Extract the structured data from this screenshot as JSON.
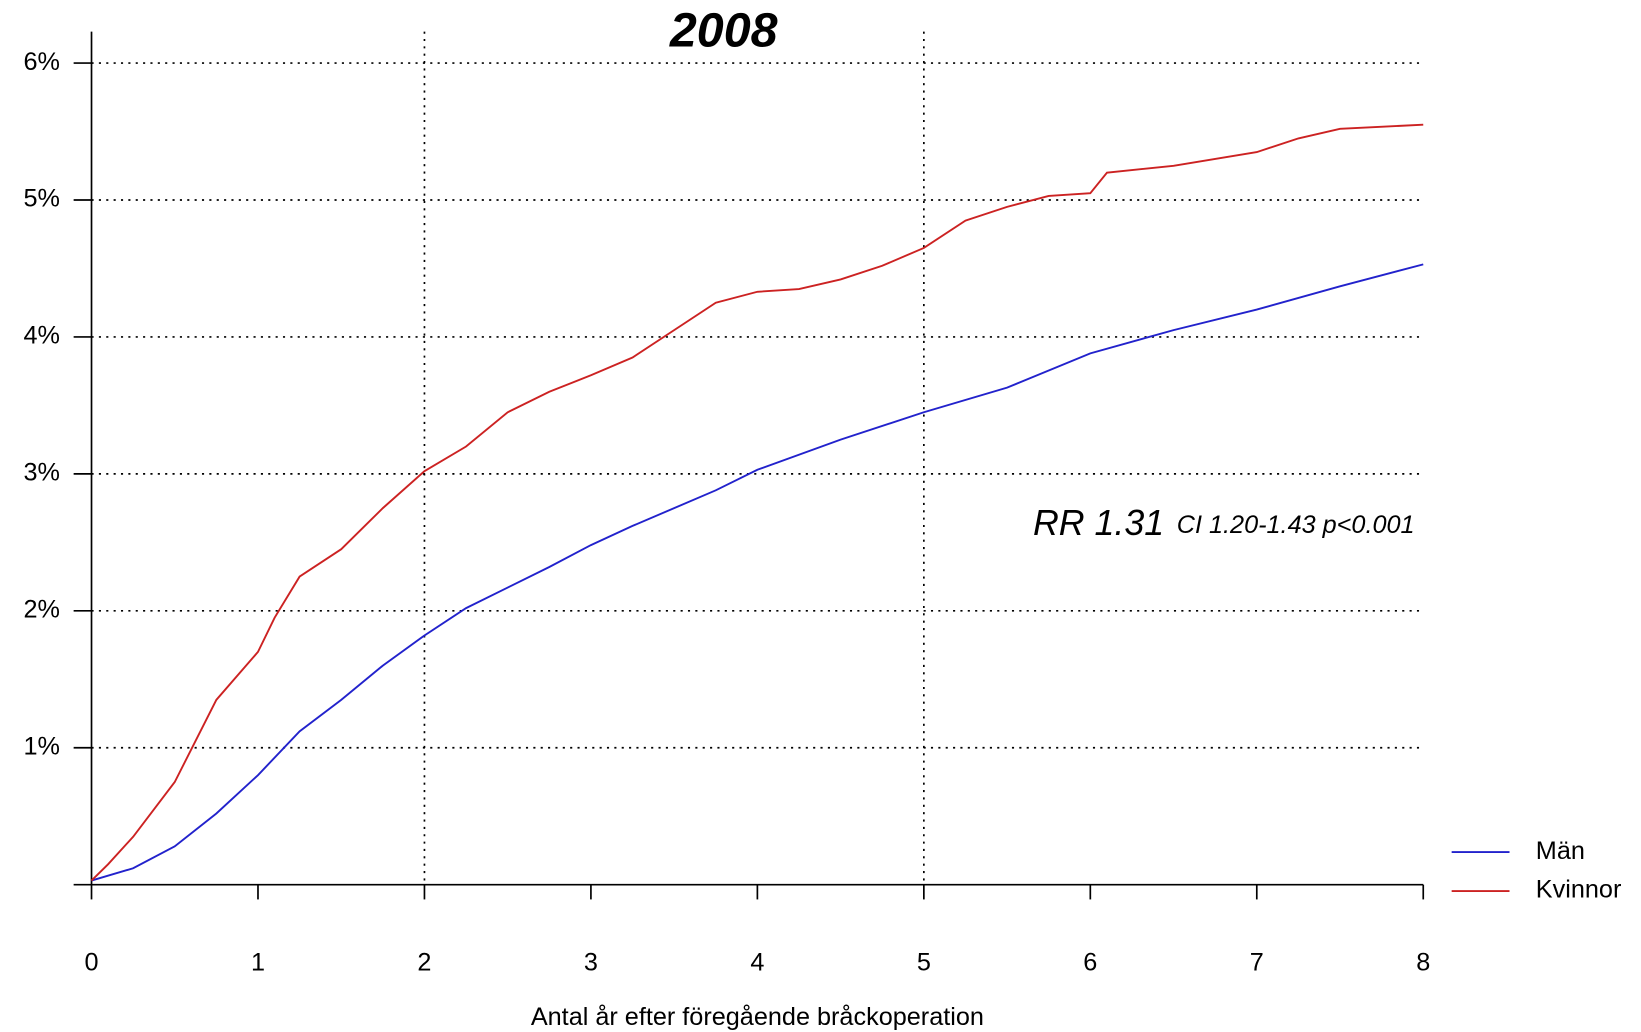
{
  "chart_data": {
    "type": "line",
    "title": "2008",
    "x_label": "Antal år efter föregående bråckoperation",
    "annotation": {
      "main": "RR 1.31",
      "detail": "CI 1.20-1.43 p<0.001"
    },
    "xlim": [
      0,
      8
    ],
    "xticks": [
      0,
      1,
      2,
      3,
      4,
      5,
      6,
      7,
      8
    ],
    "ylim": [
      0,
      6.23
    ],
    "yticks": [
      {
        "value": 1,
        "label": "1%"
      },
      {
        "value": 2,
        "label": "2%"
      },
      {
        "value": 3,
        "label": "3%"
      },
      {
        "value": 4,
        "label": "4%"
      },
      {
        "value": 5,
        "label": "5%"
      },
      {
        "value": 6,
        "label": "6%"
      }
    ],
    "xgrid": [
      2,
      5
    ],
    "grid": true,
    "legend": "bottom-right",
    "series": [
      {
        "name": "Män",
        "color": "#2222cc",
        "x": [
          0,
          0.25,
          0.5,
          0.75,
          1,
          1.25,
          1.5,
          1.75,
          2,
          2.25,
          2.5,
          2.75,
          3,
          3.25,
          3.5,
          3.75,
          4,
          4.5,
          5,
          5.5,
          6,
          6.5,
          7,
          7.5,
          8
        ],
        "values": [
          0.03,
          0.12,
          0.28,
          0.52,
          0.8,
          1.12,
          1.35,
          1.6,
          1.82,
          2.02,
          2.17,
          2.32,
          2.48,
          2.62,
          2.75,
          2.88,
          3.03,
          3.25,
          3.45,
          3.63,
          3.88,
          4.05,
          4.2,
          4.37,
          4.53
        ]
      },
      {
        "name": "Kvinnor",
        "color": "#cc2222",
        "x": [
          0,
          0.1,
          0.25,
          0.5,
          0.75,
          1,
          1.1,
          1.25,
          1.5,
          1.75,
          2,
          2.25,
          2.5,
          2.75,
          3,
          3.25,
          3.5,
          3.75,
          4,
          4.25,
          4.5,
          4.75,
          5,
          5.25,
          5.5,
          5.75,
          6,
          6.1,
          6.5,
          7,
          7.25,
          7.5,
          8
        ],
        "values": [
          0.03,
          0.15,
          0.35,
          0.75,
          1.35,
          1.7,
          1.95,
          2.25,
          2.45,
          2.75,
          3.02,
          3.2,
          3.45,
          3.6,
          3.72,
          3.85,
          4.05,
          4.25,
          4.33,
          4.35,
          4.42,
          4.52,
          4.65,
          4.85,
          4.95,
          5.03,
          5.05,
          5.2,
          5.25,
          5.35,
          5.45,
          5.52,
          5.55
        ]
      }
    ]
  }
}
